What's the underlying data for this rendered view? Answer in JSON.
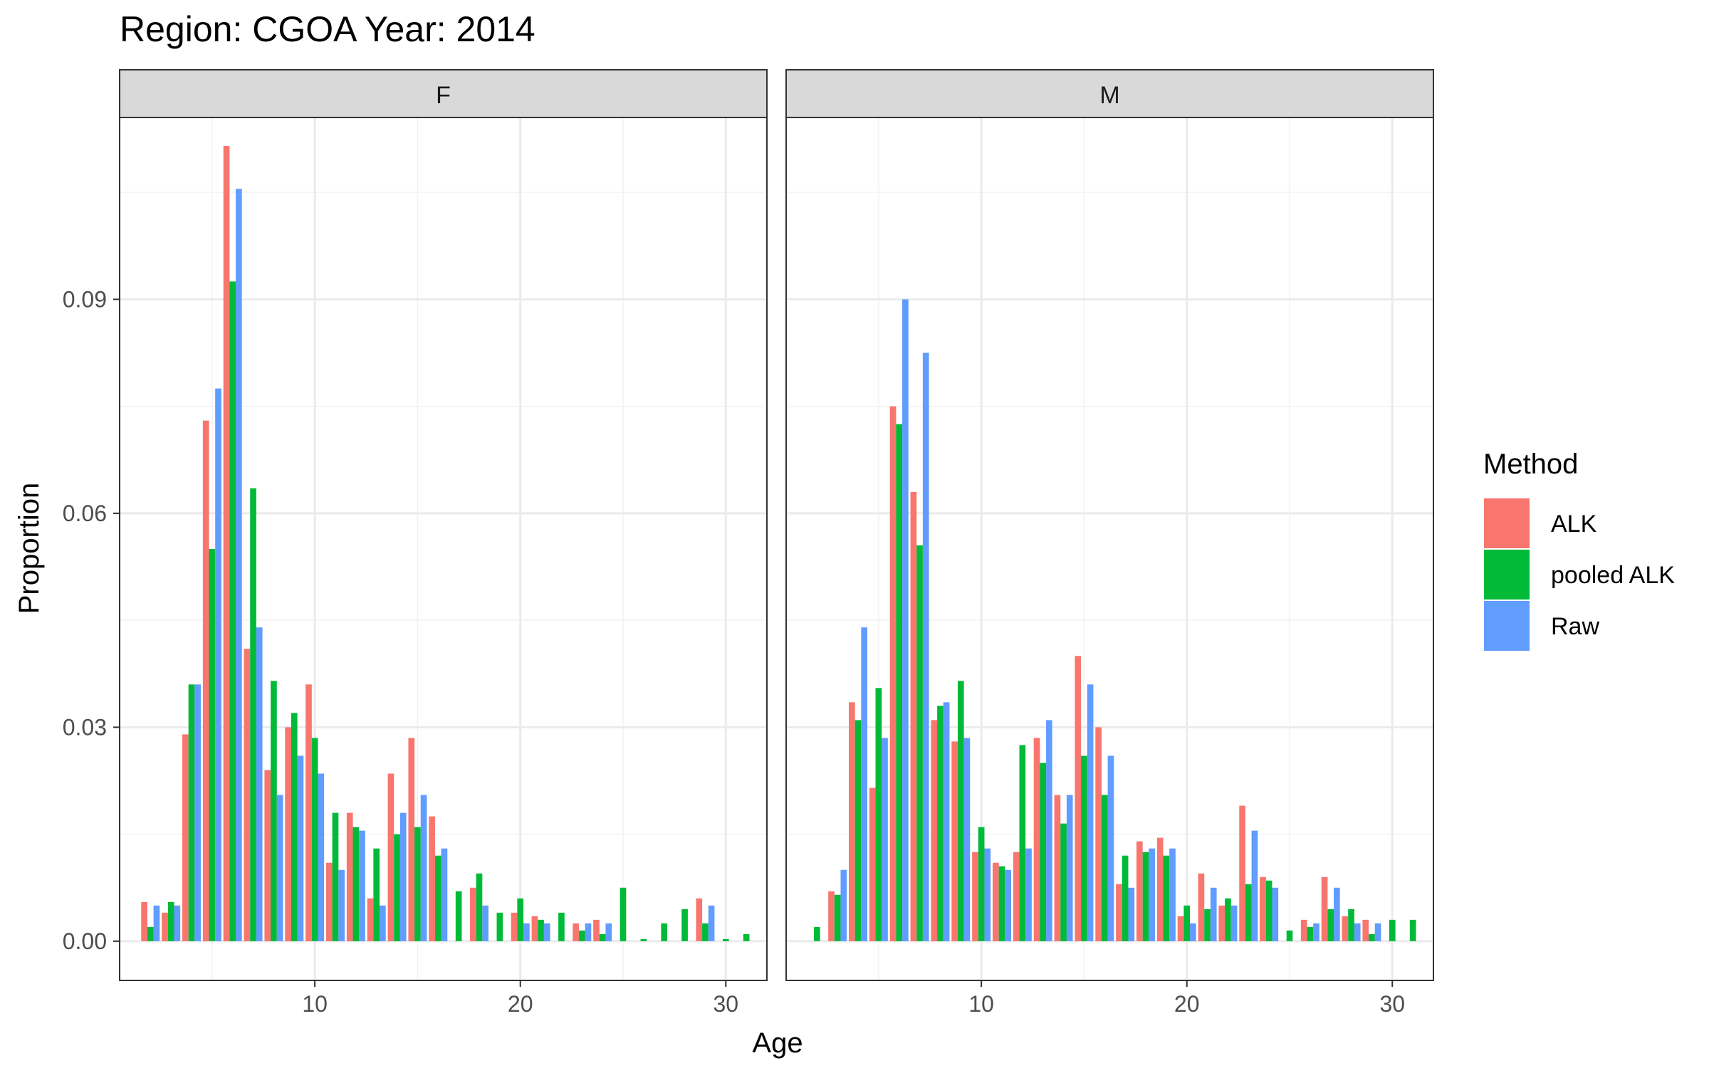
{
  "chart_data": {
    "type": "bar",
    "title": "Region: CGOA Year: 2014",
    "xlabel": "Age",
    "ylabel": "Proportion",
    "xlim": [
      0.5,
      32
    ],
    "ylim": [
      -0.0055,
      0.1155
    ],
    "xticks": [
      10,
      20,
      30
    ],
    "yticks": [
      0.0,
      0.03,
      0.06,
      0.09
    ],
    "ytick_labels": [
      "0.00",
      "0.03",
      "0.06",
      "0.09"
    ],
    "grid": true,
    "legend": {
      "title": "Method",
      "position": "right",
      "entries": [
        {
          "name": "ALK",
          "color": "#F8766D"
        },
        {
          "name": "pooled ALK",
          "color": "#00BA38"
        },
        {
          "name": "Raw",
          "color": "#619CFF"
        }
      ]
    },
    "panels": [
      {
        "label": "F",
        "series": [
          {
            "name": "ALK",
            "color": "#F8766D",
            "points": [
              [
                2,
                0.0055
              ],
              [
                3,
                0.004
              ],
              [
                4,
                0.029
              ],
              [
                5,
                0.073
              ],
              [
                6,
                0.1115
              ],
              [
                7,
                0.041
              ],
              [
                8,
                0.024
              ],
              [
                9,
                0.03
              ],
              [
                10,
                0.036
              ],
              [
                11,
                0.011
              ],
              [
                12,
                0.018
              ],
              [
                13,
                0.006
              ],
              [
                14,
                0.0235
              ],
              [
                15,
                0.0285
              ],
              [
                16,
                0.0175
              ],
              [
                18,
                0.0075
              ],
              [
                20,
                0.004
              ],
              [
                21,
                0.0035
              ],
              [
                23,
                0.0025
              ],
              [
                24,
                0.003
              ],
              [
                29,
                0.006
              ]
            ]
          },
          {
            "name": "pooled ALK",
            "color": "#00BA38",
            "points": [
              [
                2,
                0.002
              ],
              [
                3,
                0.0055
              ],
              [
                4,
                0.036
              ],
              [
                5,
                0.055
              ],
              [
                6,
                0.0925
              ],
              [
                7,
                0.0635
              ],
              [
                8,
                0.0365
              ],
              [
                9,
                0.032
              ],
              [
                10,
                0.0285
              ],
              [
                11,
                0.018
              ],
              [
                12,
                0.016
              ],
              [
                13,
                0.013
              ],
              [
                14,
                0.015
              ],
              [
                15,
                0.016
              ],
              [
                16,
                0.012
              ],
              [
                17,
                0.007
              ],
              [
                18,
                0.0095
              ],
              [
                19,
                0.004
              ],
              [
                20,
                0.006
              ],
              [
                21,
                0.003
              ],
              [
                22,
                0.004
              ],
              [
                23,
                0.0015
              ],
              [
                24,
                0.001
              ],
              [
                25,
                0.0075
              ],
              [
                26,
                0.0003
              ],
              [
                27,
                0.0025
              ],
              [
                28,
                0.0045
              ],
              [
                29,
                0.0025
              ],
              [
                30,
                0.0003
              ],
              [
                31,
                0.001
              ]
            ]
          },
          {
            "name": "Raw",
            "color": "#619CFF",
            "points": [
              [
                2,
                0.005
              ],
              [
                3,
                0.005
              ],
              [
                4,
                0.036
              ],
              [
                5,
                0.0775
              ],
              [
                6,
                0.1055
              ],
              [
                7,
                0.044
              ],
              [
                8,
                0.0205
              ],
              [
                9,
                0.026
              ],
              [
                10,
                0.0235
              ],
              [
                11,
                0.01
              ],
              [
                12,
                0.0155
              ],
              [
                13,
                0.005
              ],
              [
                14,
                0.018
              ],
              [
                15,
                0.0205
              ],
              [
                16,
                0.013
              ],
              [
                18,
                0.005
              ],
              [
                20,
                0.0025
              ],
              [
                21,
                0.0025
              ],
              [
                23,
                0.0025
              ],
              [
                24,
                0.0025
              ],
              [
                29,
                0.005
              ]
            ]
          }
        ]
      },
      {
        "label": "M",
        "series": [
          {
            "name": "ALK",
            "color": "#F8766D",
            "points": [
              [
                3,
                0.007
              ],
              [
                4,
                0.0335
              ],
              [
                5,
                0.0215
              ],
              [
                6,
                0.075
              ],
              [
                7,
                0.063
              ],
              [
                8,
                0.031
              ],
              [
                9,
                0.028
              ],
              [
                10,
                0.0125
              ],
              [
                11,
                0.011
              ],
              [
                12,
                0.0125
              ],
              [
                13,
                0.0285
              ],
              [
                14,
                0.0205
              ],
              [
                15,
                0.04
              ],
              [
                16,
                0.03
              ],
              [
                17,
                0.008
              ],
              [
                18,
                0.014
              ],
              [
                19,
                0.0145
              ],
              [
                20,
                0.0035
              ],
              [
                21,
                0.0095
              ],
              [
                22,
                0.005
              ],
              [
                23,
                0.019
              ],
              [
                24,
                0.009
              ],
              [
                26,
                0.003
              ],
              [
                27,
                0.009
              ],
              [
                28,
                0.0035
              ],
              [
                29,
                0.003
              ]
            ]
          },
          {
            "name": "pooled ALK",
            "color": "#00BA38",
            "points": [
              [
                2,
                0.002
              ],
              [
                3,
                0.0065
              ],
              [
                4,
                0.031
              ],
              [
                5,
                0.0355
              ],
              [
                6,
                0.0725
              ],
              [
                7,
                0.0555
              ],
              [
                8,
                0.033
              ],
              [
                9,
                0.0365
              ],
              [
                10,
                0.016
              ],
              [
                11,
                0.0105
              ],
              [
                12,
                0.0275
              ],
              [
                13,
                0.025
              ],
              [
                14,
                0.0165
              ],
              [
                15,
                0.026
              ],
              [
                16,
                0.0205
              ],
              [
                17,
                0.012
              ],
              [
                18,
                0.0125
              ],
              [
                19,
                0.012
              ],
              [
                20,
                0.005
              ],
              [
                21,
                0.0045
              ],
              [
                22,
                0.006
              ],
              [
                23,
                0.008
              ],
              [
                24,
                0.0085
              ],
              [
                25,
                0.0015
              ],
              [
                26,
                0.002
              ],
              [
                27,
                0.0045
              ],
              [
                28,
                0.0045
              ],
              [
                29,
                0.001
              ],
              [
                30,
                0.003
              ],
              [
                31,
                0.003
              ]
            ]
          },
          {
            "name": "Raw",
            "color": "#619CFF",
            "points": [
              [
                3,
                0.01
              ],
              [
                4,
                0.044
              ],
              [
                5,
                0.0285
              ],
              [
                6,
                0.09
              ],
              [
                7,
                0.0825
              ],
              [
                8,
                0.0335
              ],
              [
                9,
                0.0285
              ],
              [
                10,
                0.013
              ],
              [
                11,
                0.01
              ],
              [
                12,
                0.013
              ],
              [
                13,
                0.031
              ],
              [
                14,
                0.0205
              ],
              [
                15,
                0.036
              ],
              [
                16,
                0.026
              ],
              [
                17,
                0.0075
              ],
              [
                18,
                0.013
              ],
              [
                19,
                0.013
              ],
              [
                20,
                0.0025
              ],
              [
                21,
                0.0075
              ],
              [
                22,
                0.005
              ],
              [
                23,
                0.0155
              ],
              [
                24,
                0.0075
              ],
              [
                26,
                0.0025
              ],
              [
                27,
                0.0075
              ],
              [
                28,
                0.0025
              ],
              [
                29,
                0.0025
              ]
            ]
          }
        ]
      }
    ]
  }
}
